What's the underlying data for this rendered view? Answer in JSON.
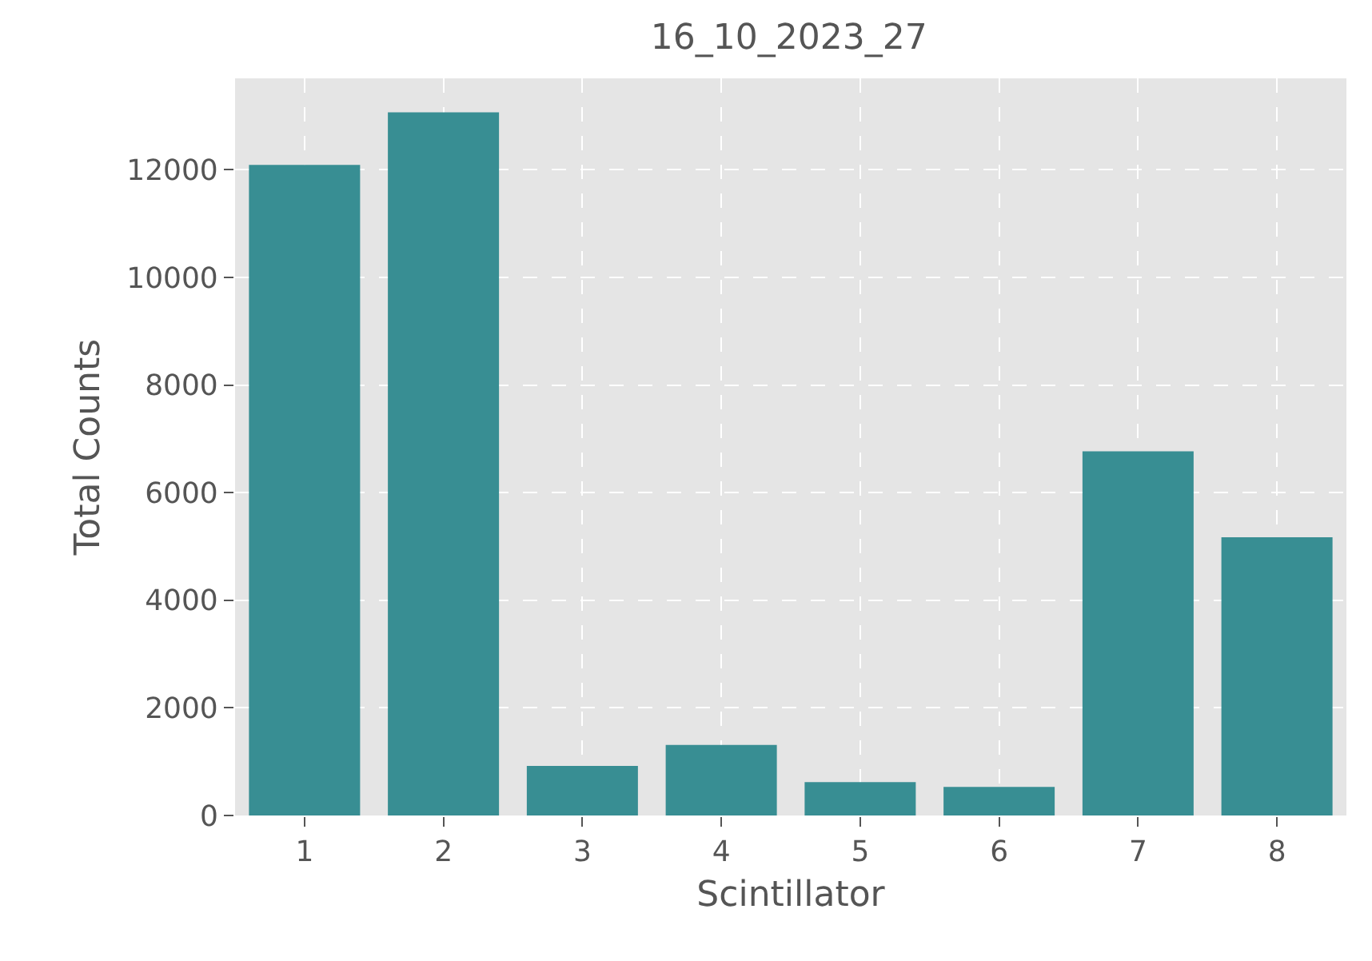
{
  "chart_data": {
    "type": "bar",
    "title": "16_10_2023_27",
    "xlabel": "Scintillator",
    "ylabel": "Total Counts",
    "categories": [
      "1",
      "2",
      "3",
      "4",
      "5",
      "6",
      "7",
      "8"
    ],
    "values": [
      12090,
      13070,
      920,
      1310,
      620,
      530,
      6770,
      5170
    ],
    "color": "#388e93",
    "ylim": [
      0,
      13700
    ],
    "yticks": [
      0,
      2000,
      4000,
      6000,
      8000,
      10000,
      12000
    ],
    "grid": true
  }
}
